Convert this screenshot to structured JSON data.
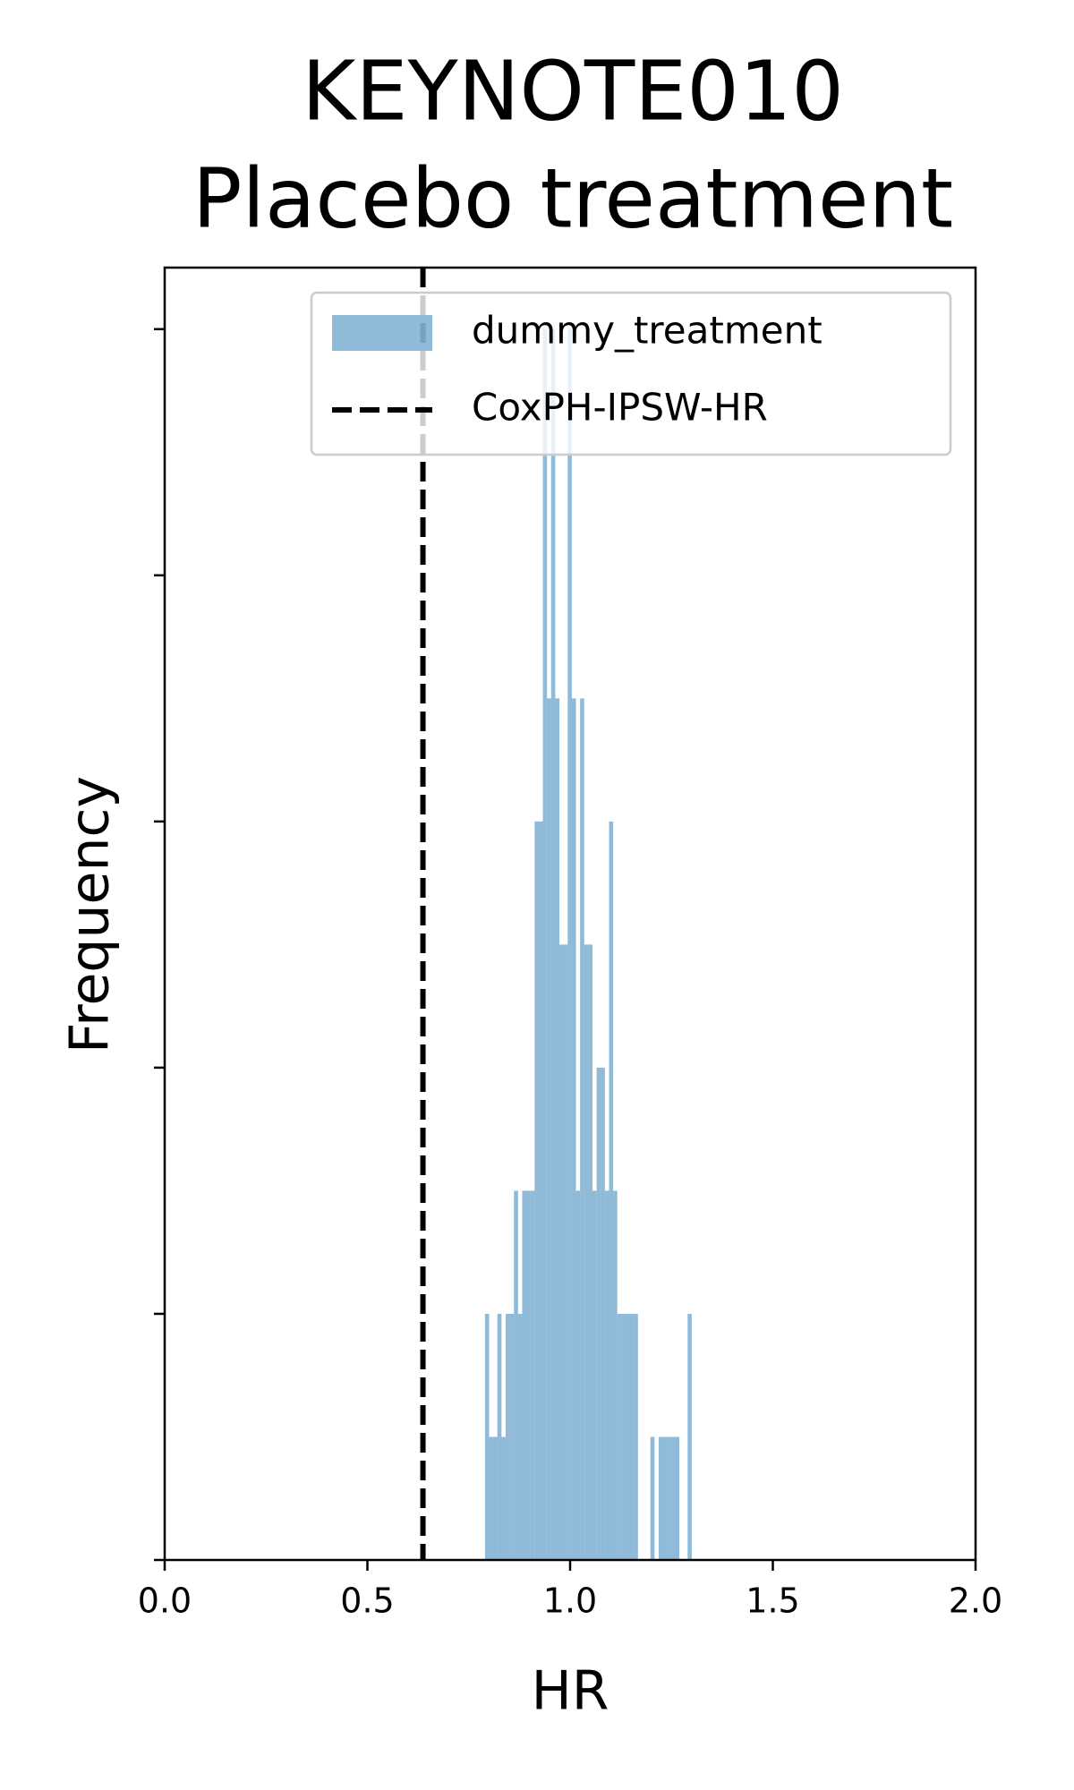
{
  "chart_data": {
    "type": "histogram",
    "title": [
      "KEYNOTE010",
      "Placebo treatment"
    ],
    "x_label": "HR",
    "y_label": "Frequency",
    "bins": [
      0.79,
      0.8002,
      0.8104,
      0.8206,
      0.8308,
      0.841,
      0.8512,
      0.8614,
      0.8716,
      0.8818,
      0.892,
      0.9022,
      0.9124,
      0.9226,
      0.9328,
      0.943,
      0.9532,
      0.9634,
      0.9736,
      0.9838,
      0.994,
      1.0042,
      1.0144,
      1.0246,
      1.0348,
      1.045,
      1.0552,
      1.0654,
      1.0756,
      1.0858,
      1.096,
      1.1062,
      1.1164,
      1.1266,
      1.1368,
      1.147,
      1.1572,
      1.1674,
      1.1776,
      1.1878,
      1.198,
      1.2082,
      1.2184,
      1.2286,
      1.2388,
      1.249,
      1.2592,
      1.2694,
      1.2796,
      1.2898,
      1.3
    ],
    "series": [
      {
        "name": "dummy_treatment",
        "color": "#1f77b4",
        "alpha": 0.5,
        "values": [
          2,
          1,
          1,
          2,
          1,
          2,
          2,
          3,
          2,
          3,
          3,
          3,
          6,
          6,
          10,
          7,
          10,
          7,
          5,
          5,
          10,
          7,
          3,
          7,
          5,
          5,
          3,
          4,
          4,
          3,
          6,
          3,
          2,
          2,
          2,
          2,
          2,
          0,
          0,
          0,
          1,
          0,
          1,
          1,
          1,
          1,
          1,
          0,
          0,
          2
        ]
      }
    ],
    "vline": {
      "name": "CoxPH-IPSW-HR",
      "value": 0.637,
      "color": "#000000",
      "style": "dashed"
    },
    "xlim": [
      0,
      2
    ],
    "xticks": [
      {
        "value": 0,
        "label": "0.0"
      },
      0.5,
      {
        "value": 1,
        "label": "1.0"
      },
      1.5,
      {
        "value": 2,
        "label": "2.0"
      }
    ],
    "ylim": [
      0,
      10.5
    ],
    "yticks": [
      0,
      2,
      4,
      6,
      8,
      10
    ],
    "ytick_labels": false,
    "grid": false,
    "legend": "upper right"
  }
}
